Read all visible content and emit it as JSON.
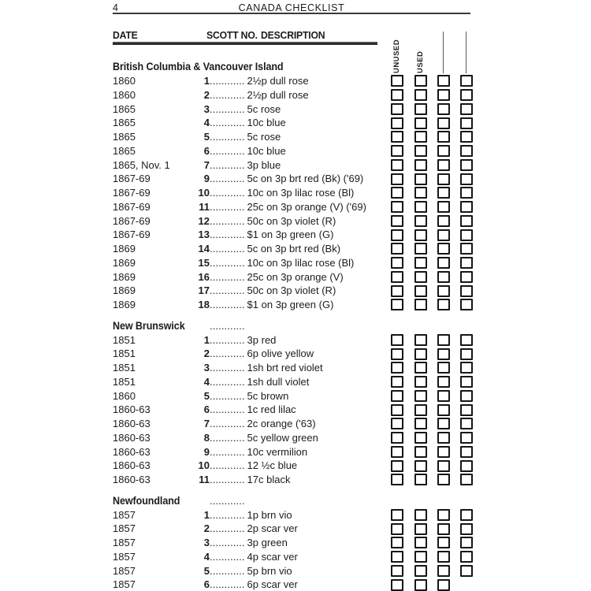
{
  "page": {
    "number": "4",
    "title": "CANADA CHECKLIST"
  },
  "table_headers": {
    "date": "DATE",
    "scott_no": "SCOTT NO.",
    "description": "DESCRIPTION"
  },
  "check_columns": [
    {
      "key": "unused",
      "label": "UNUSED"
    },
    {
      "key": "used",
      "label": "USED"
    },
    {
      "key": "blank-1",
      "label": ""
    },
    {
      "key": "blank-2",
      "label": ""
    }
  ],
  "leader_dots": "............",
  "colors": {
    "ink": "#1c1c1c",
    "rule": "#2e2e2e",
    "blank_line": "#5a5a5a"
  },
  "sections": [
    {
      "name": "British Columbia & Vancouver Island",
      "header_dots": false,
      "rows": [
        {
          "date": "1860",
          "num": "1",
          "desc": "2½p dull rose"
        },
        {
          "date": "1860",
          "num": "2",
          "desc": "2½p dull rose"
        },
        {
          "date": "1865",
          "num": "3",
          "desc": "5c rose"
        },
        {
          "date": "1865",
          "num": "4",
          "desc": "10c blue"
        },
        {
          "date": "1865",
          "num": "5",
          "desc": "5c rose"
        },
        {
          "date": "1865",
          "num": "6",
          "desc": "10c blue"
        },
        {
          "date": "1865, Nov. 1",
          "num": "7",
          "desc": "3p blue"
        },
        {
          "date": "1867-69",
          "num": "9",
          "desc": "5c on 3p brt red (Bk) ('69)"
        },
        {
          "date": "1867-69",
          "num": "10",
          "desc": "10c on 3p lilac rose (Bl)"
        },
        {
          "date": "1867-69",
          "num": "11",
          "desc": "25c on 3p orange (V) ('69)"
        },
        {
          "date": "1867-69",
          "num": "12",
          "desc": "50c on 3p violet (R)"
        },
        {
          "date": "1867-69",
          "num": "13",
          "desc": "$1 on 3p green (G)"
        },
        {
          "date": "1869",
          "num": "14",
          "desc": "5c on 3p brt red (Bk)"
        },
        {
          "date": "1869",
          "num": "15",
          "desc": "10c on 3p lilac rose (Bl)"
        },
        {
          "date": "1869",
          "num": "16",
          "desc": "25c on 3p orange (V)"
        },
        {
          "date": "1869",
          "num": "17",
          "desc": "50c on 3p violet (R)"
        },
        {
          "date": "1869",
          "num": "18",
          "desc": "$1 on 3p green (G)"
        }
      ]
    },
    {
      "name": "New Brunswick",
      "header_dots": true,
      "rows": [
        {
          "date": "1851",
          "num": "1",
          "desc": "3p red"
        },
        {
          "date": "1851",
          "num": "2",
          "desc": "6p olive yellow"
        },
        {
          "date": "1851",
          "num": "3",
          "desc": "1sh brt red violet"
        },
        {
          "date": "1851",
          "num": "4",
          "desc": "1sh dull violet"
        },
        {
          "date": "1860",
          "num": "5",
          "desc": "5c brown"
        },
        {
          "date": "1860-63",
          "num": "6",
          "desc": "1c red lilac"
        },
        {
          "date": "1860-63",
          "num": "7",
          "desc": "2c orange ('63)"
        },
        {
          "date": "1860-63",
          "num": "8",
          "desc": "5c yellow green"
        },
        {
          "date": "1860-63",
          "num": "9",
          "desc": "10c vermilion"
        },
        {
          "date": "1860-63",
          "num": "10",
          "desc": "12 ½c blue"
        },
        {
          "date": "1860-63",
          "num": "11",
          "desc": "17c black"
        }
      ]
    },
    {
      "name": "Newfoundland",
      "header_dots": true,
      "rows": [
        {
          "date": "1857",
          "num": "1",
          "desc": "1p brn vio"
        },
        {
          "date": "1857",
          "num": "2",
          "desc": "2p scar ver"
        },
        {
          "date": "1857",
          "num": "3",
          "desc": "3p green"
        },
        {
          "date": "1857",
          "num": "4",
          "desc": "4p scar ver"
        },
        {
          "date": "1857",
          "num": "5",
          "desc": "5p brn vio"
        },
        {
          "date": "1857",
          "num": "6",
          "desc": "6p scar ver",
          "boxes": 3
        }
      ]
    }
  ]
}
